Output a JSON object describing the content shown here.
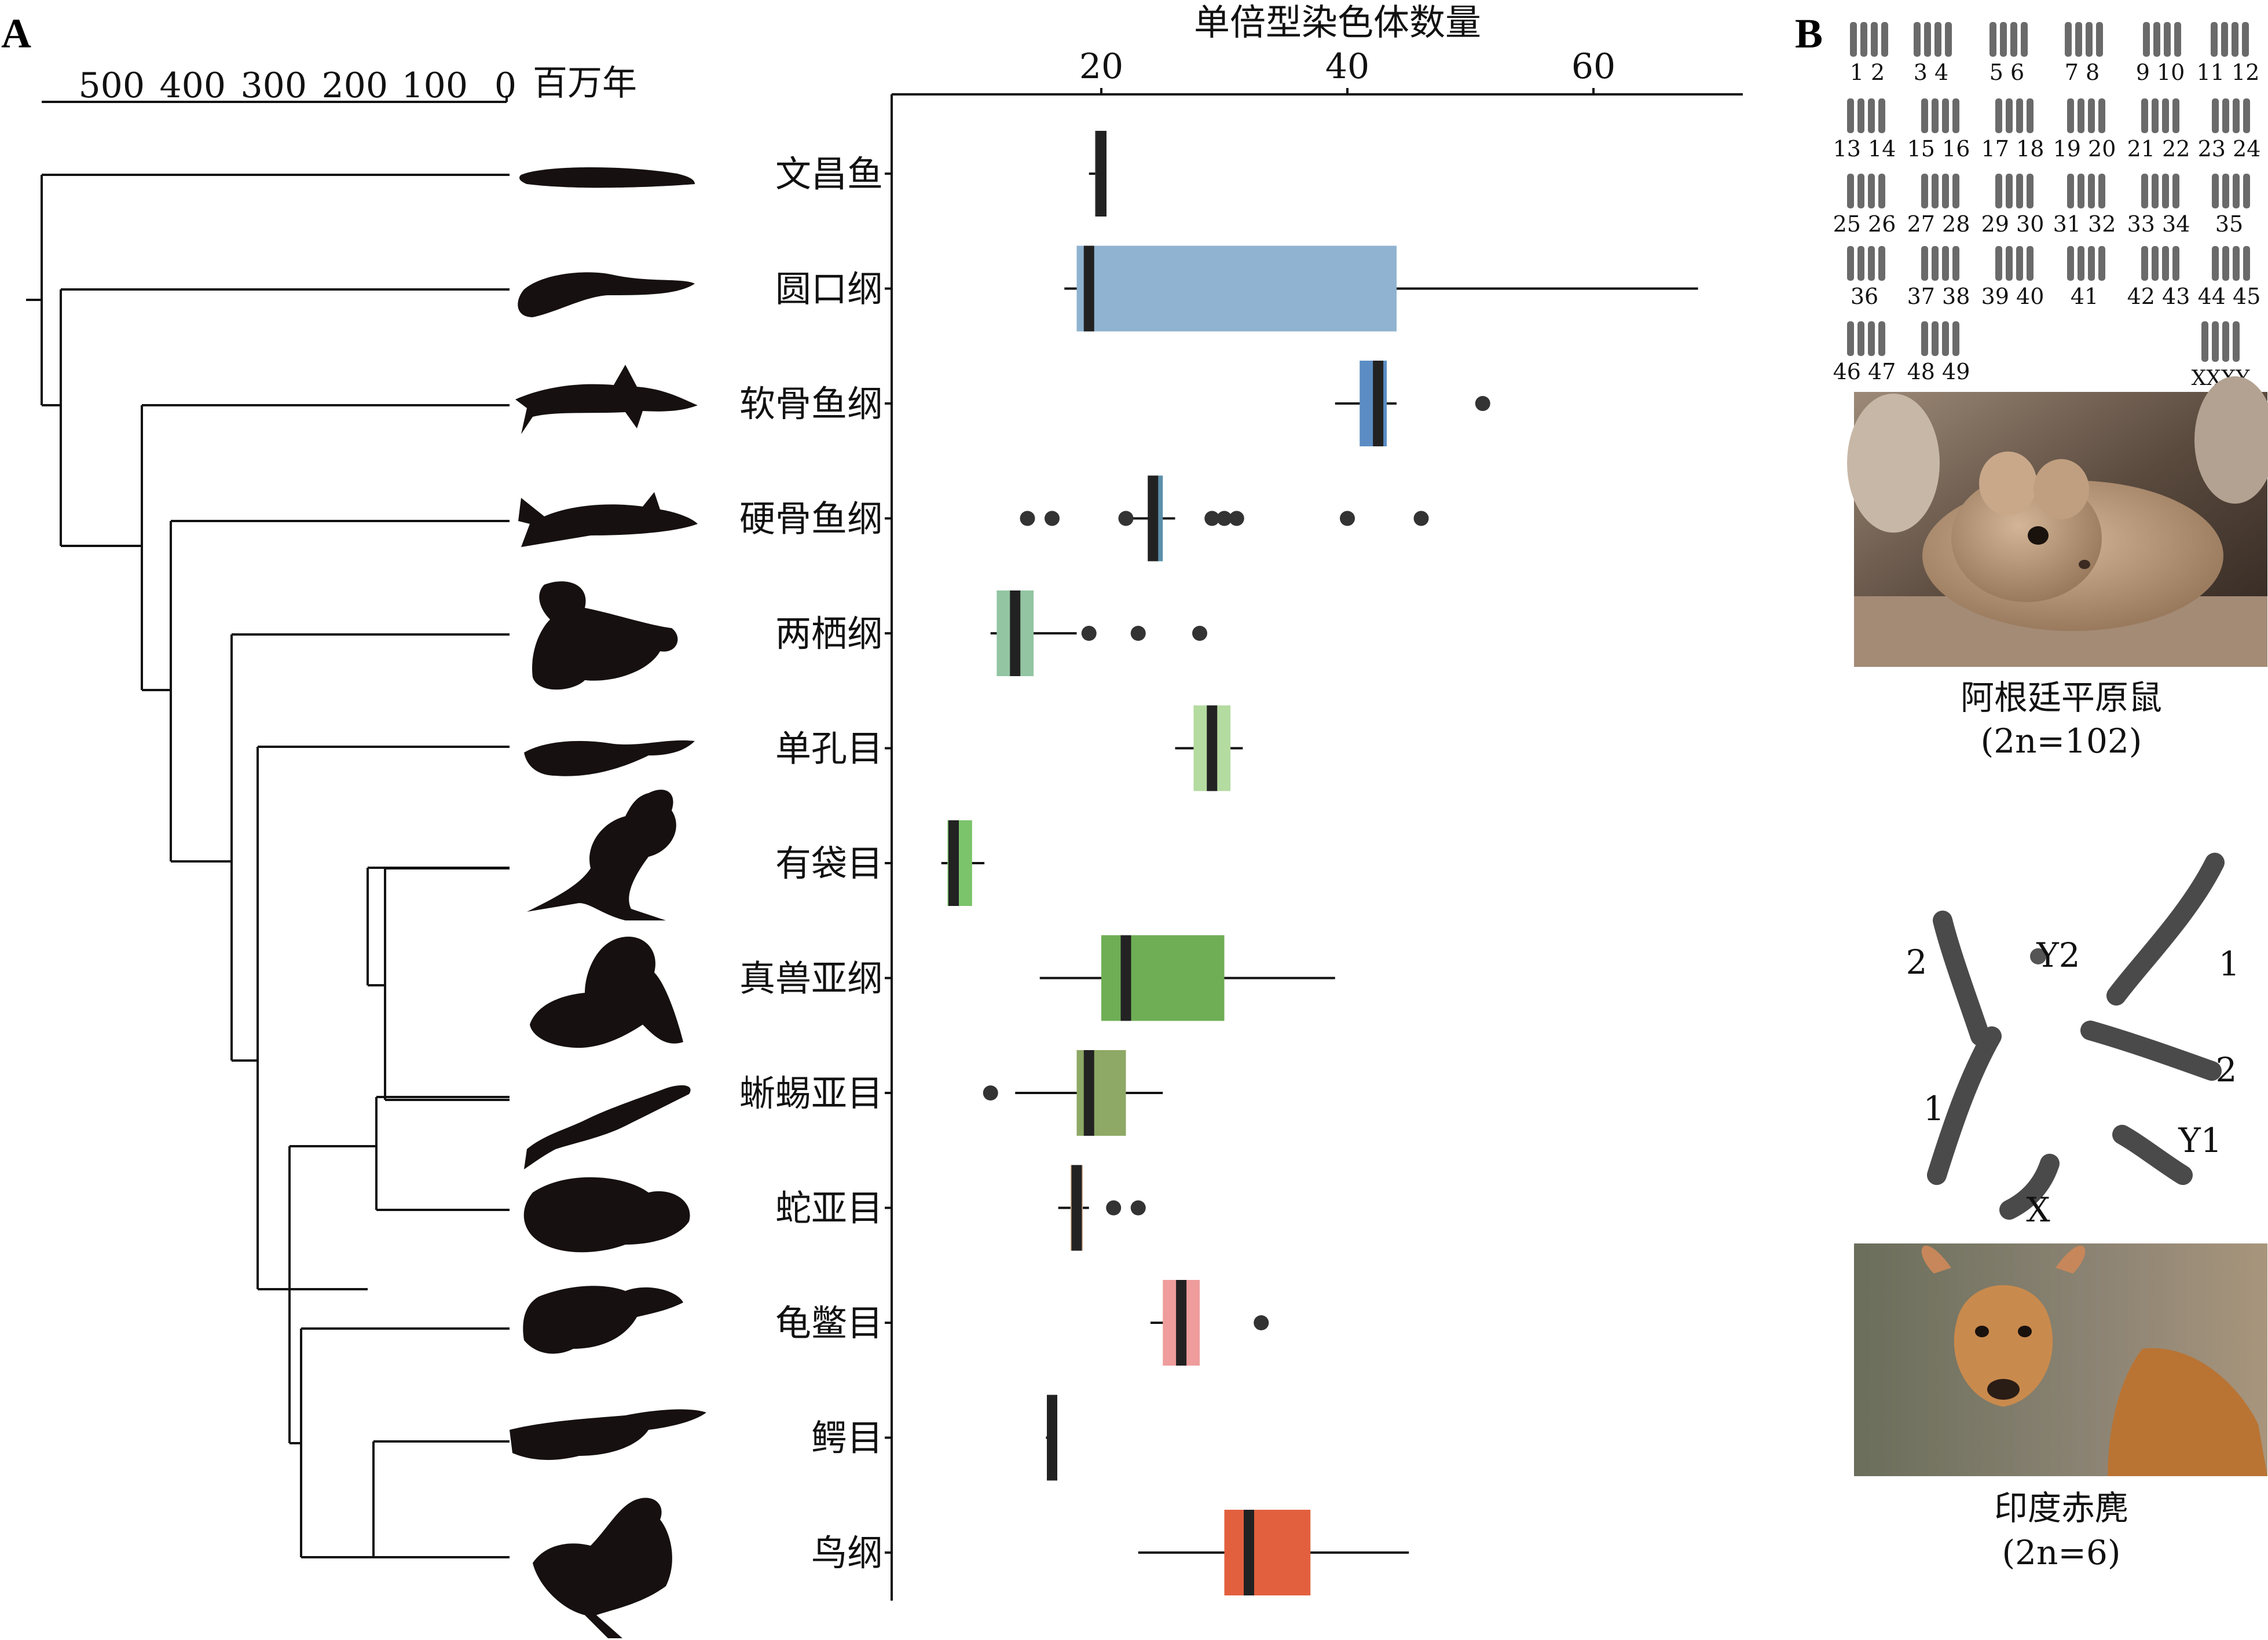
{
  "panel_labels": {
    "a": "A",
    "b": "B"
  },
  "timescale": {
    "unit_label": "百万年",
    "ticks": [
      "500",
      "400",
      "300",
      "200",
      "100",
      "0"
    ]
  },
  "panel_b": {
    "karyotype_top_row_labels": [
      "1 2",
      "3 4",
      "5 6",
      "7 8",
      "9 10",
      "11 12"
    ],
    "karyotype_labels": [
      "13 14",
      "15 16",
      "17 18",
      "19 20",
      "21 22",
      "23 24",
      "25 26",
      "27 28",
      "29 30",
      "31 32",
      "33 34",
      "35",
      "36",
      "37 38",
      "39 40",
      "41",
      "42 43",
      "44 45",
      "46 47",
      "48 49",
      "XXXY"
    ],
    "rat_name": "阿根廷平原鼠",
    "rat_count": "(2n=102)",
    "muntjac_chromosome_labels": [
      "2",
      "Y2",
      "1",
      "2",
      "1",
      "Y1",
      "X"
    ],
    "muntjac_name": "印度赤麂",
    "muntjac_count": "(2n=6)"
  },
  "chart_data": {
    "type": "box",
    "title": "单倍型染色体数量",
    "xlabel": "单倍型染色体数量",
    "ylabel": "",
    "x_ticks": [
      20,
      40,
      60
    ],
    "xlim": [
      3,
      72
    ],
    "grid": false,
    "categories": [
      "文昌鱼",
      "圆口纲",
      "软骨鱼纲",
      "硬骨鱼纲",
      "两栖纲",
      "单孔目",
      "有袋目",
      "真兽亚纲",
      "蜥蜴亚目",
      "蛇亚目",
      "龟鳖目",
      "鳄目",
      "鸟纲"
    ],
    "boxes": [
      {
        "label": "文昌鱼",
        "min": 19,
        "q1": 19.5,
        "median": 20,
        "q3": 20.2,
        "max": 20.2,
        "outliers": [],
        "color": "#3a3a3a"
      },
      {
        "label": "圆口纲",
        "min": 17,
        "q1": 18,
        "median": 19,
        "q3": 44,
        "max": 68.5,
        "outliers": [],
        "color": "#8fb3d0"
      },
      {
        "label": "软骨鱼纲",
        "min": 39,
        "q1": 41,
        "median": 42.5,
        "q3": 43.2,
        "max": 44,
        "outliers": [
          51
        ],
        "color": "#5b8dc4"
      },
      {
        "label": "硬骨鱼纲",
        "min": 22,
        "q1": 24,
        "median": 24.2,
        "q3": 25,
        "max": 26,
        "outliers": [
          14,
          16,
          22,
          29,
          30,
          31,
          40,
          46
        ],
        "color": "#5b8fa9"
      },
      {
        "label": "两栖纲",
        "min": 11,
        "q1": 11.5,
        "median": 13,
        "q3": 14.5,
        "max": 18,
        "outliers": [
          19,
          23,
          28
        ],
        "color": "#93c5a2"
      },
      {
        "label": "单孔目",
        "min": 26,
        "q1": 27.5,
        "median": 29,
        "q3": 30.5,
        "max": 31.5,
        "outliers": [],
        "color": "#b4dba0"
      },
      {
        "label": "有袋目",
        "min": 7,
        "q1": 7.5,
        "median": 8,
        "q3": 9.5,
        "max": 10.5,
        "outliers": [],
        "color": "#7bc46b"
      },
      {
        "label": "真兽亚纲",
        "min": 15,
        "q1": 20,
        "median": 22,
        "q3": 30,
        "max": 39,
        "outliers": [],
        "color": "#6fae55"
      },
      {
        "label": "蜥蜴亚目",
        "min": 13,
        "q1": 18,
        "median": 19,
        "q3": 22,
        "max": 25,
        "outliers": [
          11
        ],
        "color": "#8ea865"
      },
      {
        "label": "蛇亚目",
        "min": 16.5,
        "q1": 17.5,
        "median": 18,
        "q3": 18.5,
        "max": 19,
        "outliers": [
          21,
          23
        ],
        "color": "#d9b597"
      },
      {
        "label": "龟鳖目",
        "min": 24,
        "q1": 25,
        "median": 26.5,
        "q3": 28,
        "max": 28,
        "outliers": [
          33
        ],
        "color": "#ee9c9c"
      },
      {
        "label": "鳄目",
        "min": 15.5,
        "q1": 15.8,
        "median": 16,
        "q3": 16.2,
        "max": 16.2,
        "outliers": [],
        "color": "#3a3a3a"
      },
      {
        "label": "鸟纲",
        "min": 23,
        "q1": 30,
        "median": 32,
        "q3": 37,
        "max": 45,
        "outliers": [],
        "color": "#e2603e"
      }
    ]
  }
}
